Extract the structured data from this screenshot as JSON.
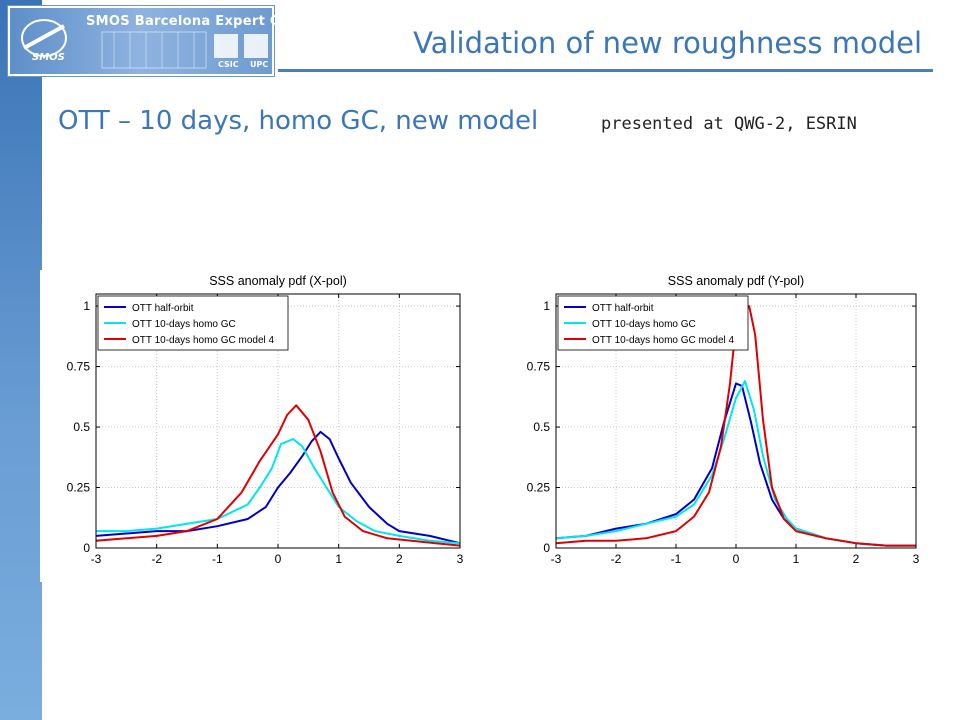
{
  "header": {
    "logo_text": "SMOS Barcelona Expert Centre",
    "logo_smos": "SMOS",
    "logo_csic": "CSIC",
    "logo_upc": "UPC",
    "title": "Validation of new roughness model",
    "subtitle": "OTT – 10 days, homo GC, new model",
    "note": "presented at QWG-2, ESRIN"
  },
  "colors": {
    "accent": "#3a76b8",
    "half_orbit": "#0000c8",
    "homo_gc": "#00e5ee",
    "model4": "#e00000"
  },
  "chart_data": [
    {
      "type": "line",
      "title": "SSS anomaly pdf (X-pol)",
      "xlim": [
        -3,
        3
      ],
      "ylim": [
        0,
        1.05
      ],
      "xticks": [
        "-3",
        "-2",
        "-1",
        "0",
        "1",
        "2",
        "3"
      ],
      "yticks": [
        "0",
        "0.25",
        "0.5",
        "0.75",
        "1"
      ],
      "grid": true,
      "legend_position": "top-left",
      "series": [
        {
          "name": "OTT half-orbit",
          "color": "#0000c8",
          "x": [
            -3,
            -2.5,
            -2,
            -1.5,
            -1,
            -0.5,
            -0.2,
            0,
            0.2,
            0.4,
            0.55,
            0.7,
            0.85,
            1.0,
            1.2,
            1.5,
            1.8,
            2.0,
            2.5,
            3.0
          ],
          "y": [
            0.05,
            0.06,
            0.07,
            0.07,
            0.09,
            0.12,
            0.17,
            0.25,
            0.31,
            0.38,
            0.44,
            0.48,
            0.45,
            0.37,
            0.27,
            0.17,
            0.1,
            0.07,
            0.05,
            0.02
          ]
        },
        {
          "name": "OTT 10-days homo GC",
          "color": "#00e5ee",
          "x": [
            -3,
            -2.5,
            -2,
            -1.5,
            -1,
            -0.5,
            -0.3,
            -0.1,
            0.05,
            0.25,
            0.4,
            0.6,
            0.8,
            1.0,
            1.3,
            1.6,
            2.0,
            2.5,
            3.0
          ],
          "y": [
            0.07,
            0.07,
            0.08,
            0.1,
            0.12,
            0.18,
            0.25,
            0.33,
            0.43,
            0.45,
            0.42,
            0.33,
            0.25,
            0.17,
            0.11,
            0.07,
            0.05,
            0.03,
            0.02
          ]
        },
        {
          "name": "OTT 10-days homo GC model 4",
          "color": "#e00000",
          "x": [
            -3,
            -2.5,
            -2,
            -1.5,
            -1,
            -0.6,
            -0.3,
            0,
            0.15,
            0.3,
            0.5,
            0.7,
            0.9,
            1.1,
            1.4,
            1.8,
            2.2,
            2.6,
            3.0
          ],
          "y": [
            0.03,
            0.04,
            0.05,
            0.07,
            0.12,
            0.23,
            0.36,
            0.47,
            0.55,
            0.59,
            0.53,
            0.4,
            0.23,
            0.13,
            0.07,
            0.04,
            0.03,
            0.02,
            0.01
          ]
        }
      ]
    },
    {
      "type": "line",
      "title": "SSS anomaly pdf (Y-pol)",
      "xlim": [
        -3,
        3
      ],
      "ylim": [
        0,
        1.05
      ],
      "xticks": [
        "-3",
        "-2",
        "-1",
        "0",
        "1",
        "2",
        "3"
      ],
      "yticks": [
        "0",
        "0.25",
        "0.5",
        "0.75",
        "1"
      ],
      "grid": true,
      "legend_position": "top-left",
      "series": [
        {
          "name": "OTT half-orbit",
          "color": "#0000c8",
          "x": [
            -3,
            -2.5,
            -2,
            -1.5,
            -1,
            -0.7,
            -0.4,
            -0.2,
            0,
            0.1,
            0.25,
            0.4,
            0.6,
            0.8,
            1.0,
            1.5,
            2.0,
            2.5,
            3.0
          ],
          "y": [
            0.04,
            0.05,
            0.08,
            0.1,
            0.14,
            0.2,
            0.33,
            0.52,
            0.68,
            0.67,
            0.52,
            0.35,
            0.2,
            0.12,
            0.08,
            0.04,
            0.02,
            0.01,
            0.01
          ]
        },
        {
          "name": "OTT 10-days homo GC",
          "color": "#00e5ee",
          "x": [
            -3,
            -2.5,
            -2,
            -1.5,
            -1,
            -0.7,
            -0.4,
            -0.2,
            0,
            0.15,
            0.3,
            0.45,
            0.65,
            0.85,
            1.0,
            1.5,
            2.0,
            2.5,
            3.0
          ],
          "y": [
            0.04,
            0.05,
            0.07,
            0.1,
            0.13,
            0.18,
            0.3,
            0.45,
            0.62,
            0.69,
            0.57,
            0.38,
            0.2,
            0.12,
            0.08,
            0.04,
            0.02,
            0.01,
            0.01
          ]
        },
        {
          "name": "OTT 10-days homo GC model 4",
          "color": "#e00000",
          "x": [
            -3,
            -2.5,
            -2,
            -1.5,
            -1,
            -0.7,
            -0.45,
            -0.25,
            -0.1,
            0.02,
            0.12,
            0.22,
            0.32,
            0.45,
            0.6,
            0.8,
            1.0,
            1.5,
            2.0,
            2.5,
            3.0
          ],
          "y": [
            0.02,
            0.03,
            0.03,
            0.04,
            0.07,
            0.13,
            0.23,
            0.42,
            0.68,
            0.97,
            1.0,
            1.0,
            0.88,
            0.53,
            0.25,
            0.12,
            0.07,
            0.04,
            0.02,
            0.01,
            0.01
          ]
        }
      ]
    }
  ]
}
